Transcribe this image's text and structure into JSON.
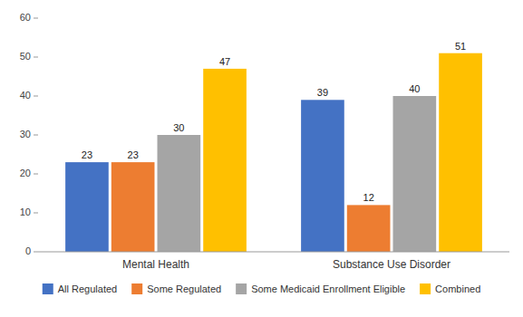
{
  "chart_data": {
    "type": "bar",
    "categories": [
      "Mental Health",
      "Substance Use Disorder"
    ],
    "series": [
      {
        "name": "All Regulated",
        "values": [
          23,
          39
        ],
        "color": "#4472C4"
      },
      {
        "name": "Some Regulated",
        "values": [
          23,
          12
        ],
        "color": "#ED7D31"
      },
      {
        "name": "Some Medicaid Enrollment Eligible",
        "values": [
          30,
          40
        ],
        "color": "#A5A5A5"
      },
      {
        "name": "Combined",
        "values": [
          47,
          51
        ],
        "color": "#FFC000"
      }
    ],
    "ylim": [
      0,
      60
    ],
    "yticks": [
      0,
      10,
      20,
      30,
      40,
      50,
      60
    ],
    "grid": false,
    "legend": "bottom",
    "data_labels": true
  }
}
